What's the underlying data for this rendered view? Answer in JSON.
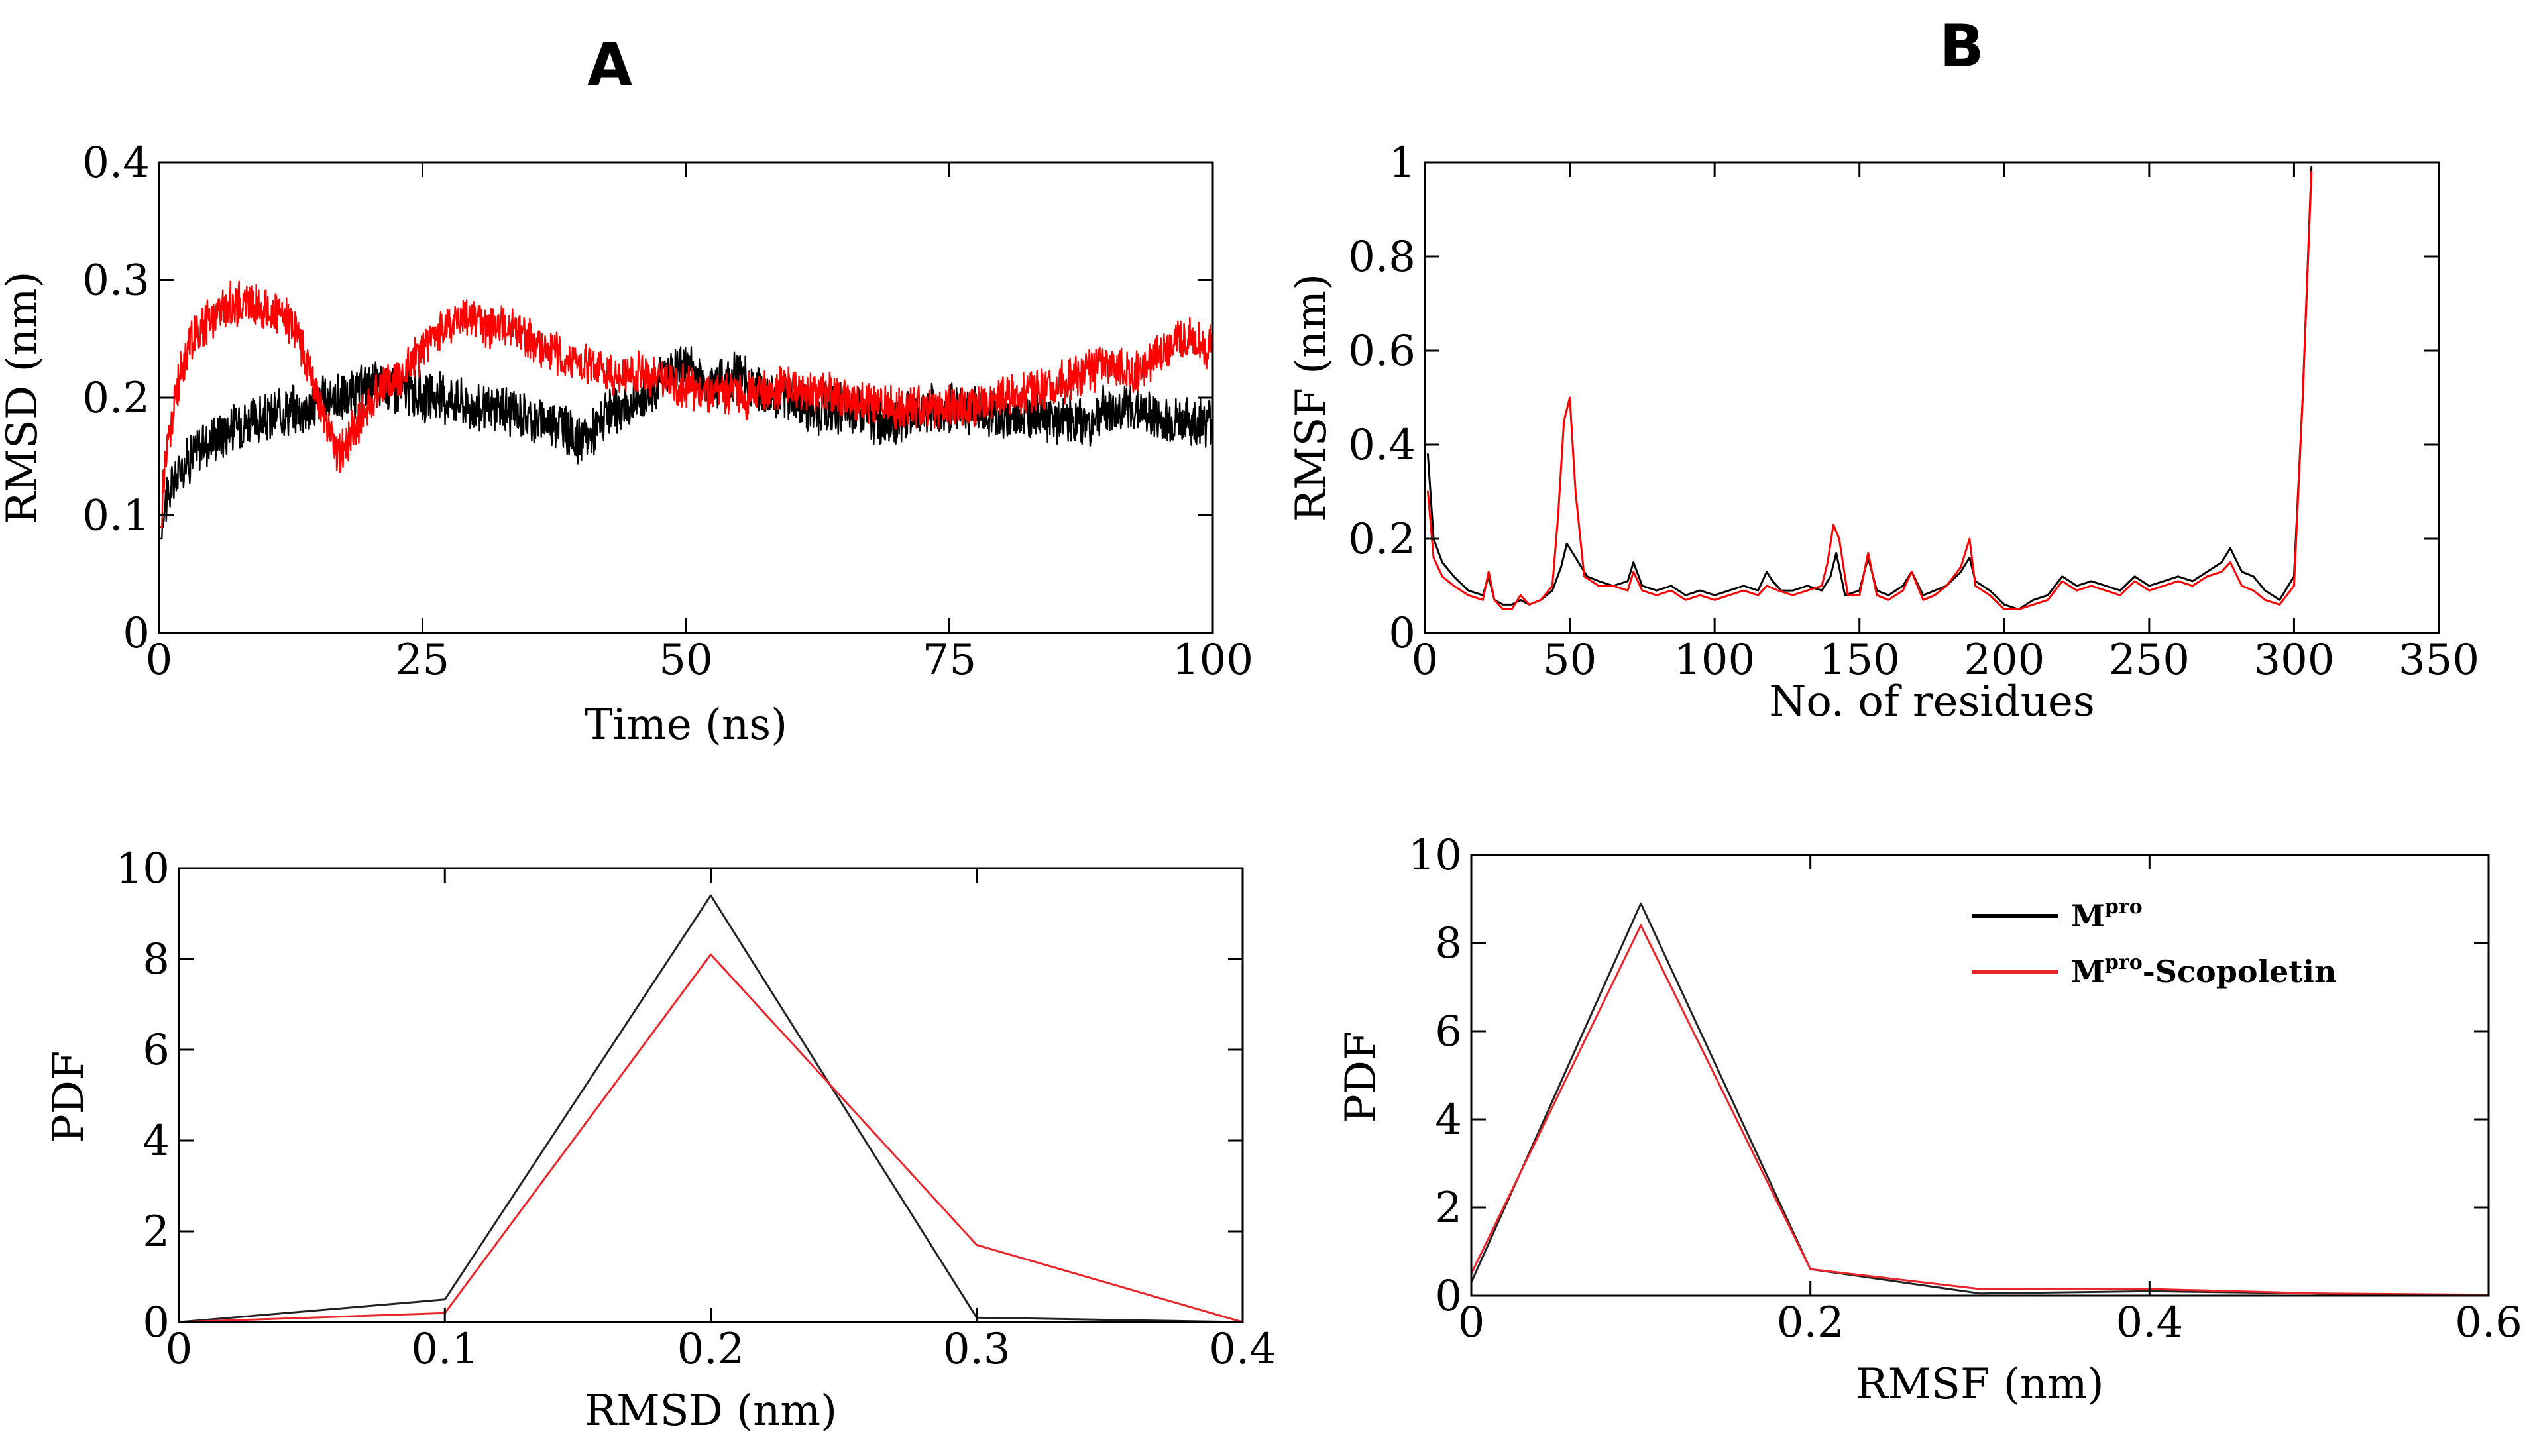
{
  "panel_labels": {
    "a": "A",
    "b": "B"
  },
  "colors": {
    "black": "#000000",
    "red": "#ff0000",
    "pdf_black": "#222222",
    "pdf_red": "#e8262b"
  },
  "legend": {
    "mpro_main": "M",
    "mpro_sup": "pro",
    "scop_main": "M",
    "scop_sup": "pro",
    "scop_suffix": "-Scopoletin"
  },
  "chart_data": [
    {
      "id": "rmsd",
      "type": "line",
      "title": "",
      "xlabel": "Time (ns)",
      "ylabel": "RMSD (nm)",
      "xlim": [
        0,
        100
      ],
      "ylim": [
        0,
        0.4
      ],
      "xticks": [
        0,
        25,
        50,
        75,
        100
      ],
      "yticks": [
        0,
        0.1,
        0.2,
        0.3,
        0.4
      ],
      "xtick_labels": [
        "0",
        "25",
        "50",
        "75",
        "100"
      ],
      "ytick_labels": [
        "0",
        "0.1",
        "0.2",
        "0.3",
        "0.4"
      ],
      "noise_key": [
        {
          "name": "Mpro",
          "series_noise": 0.018
        },
        {
          "name": "Mpro-Scopoletin",
          "series_noise": 0.016
        }
      ],
      "series": [
        {
          "name": "Mpro",
          "color": "#000000",
          "x": [
            0,
            0.5,
            1,
            2,
            3,
            4,
            6,
            8,
            10,
            12,
            14,
            16,
            18,
            20,
            22,
            25,
            28,
            30,
            33,
            36,
            38,
            40,
            42,
            44,
            46,
            48,
            50,
            52,
            55,
            58,
            60,
            62,
            65,
            68,
            70,
            73,
            75,
            78,
            80,
            83,
            85,
            88,
            90,
            93,
            95,
            98,
            100
          ],
          "values": [
            0.08,
            0.11,
            0.12,
            0.14,
            0.15,
            0.16,
            0.17,
            0.18,
            0.18,
            0.19,
            0.19,
            0.2,
            0.2,
            0.21,
            0.21,
            0.2,
            0.2,
            0.19,
            0.19,
            0.18,
            0.18,
            0.16,
            0.18,
            0.19,
            0.2,
            0.22,
            0.23,
            0.21,
            0.22,
            0.2,
            0.2,
            0.19,
            0.19,
            0.18,
            0.18,
            0.19,
            0.19,
            0.19,
            0.18,
            0.19,
            0.18,
            0.18,
            0.19,
            0.19,
            0.18,
            0.18,
            0.18
          ]
        },
        {
          "name": "Mpro-Scopoletin",
          "color": "#ff0000",
          "x": [
            0,
            0.5,
            1,
            2,
            3,
            5,
            7,
            9,
            11,
            13,
            15,
            17,
            19,
            21,
            23,
            25,
            27,
            29,
            31,
            33,
            35,
            37,
            40,
            43,
            46,
            50,
            55,
            60,
            65,
            70,
            75,
            80,
            85,
            88,
            90,
            93,
            95,
            98,
            100
          ],
          "values": [
            0.09,
            0.14,
            0.17,
            0.22,
            0.25,
            0.27,
            0.28,
            0.28,
            0.27,
            0.26,
            0.2,
            0.15,
            0.18,
            0.21,
            0.22,
            0.24,
            0.26,
            0.27,
            0.26,
            0.26,
            0.25,
            0.24,
            0.23,
            0.22,
            0.22,
            0.21,
            0.2,
            0.21,
            0.2,
            0.19,
            0.19,
            0.2,
            0.21,
            0.22,
            0.23,
            0.22,
            0.24,
            0.25,
            0.24
          ]
        }
      ]
    },
    {
      "id": "rmsf",
      "type": "line",
      "title": "",
      "xlabel": "No. of residues",
      "ylabel": "RMSF (nm)",
      "xlim": [
        0,
        350
      ],
      "ylim": [
        0,
        1
      ],
      "xticks": [
        0,
        50,
        100,
        150,
        200,
        250,
        300,
        350
      ],
      "yticks": [
        0,
        0.2,
        0.4,
        0.6,
        0.8,
        1
      ],
      "xtick_labels": [
        "0",
        "50",
        "100",
        "150",
        "200",
        "250",
        "300",
        "350"
      ],
      "ytick_labels": [
        "0",
        "0.2",
        "0.4",
        "0.6",
        "0.8",
        "1"
      ],
      "series": [
        {
          "name": "Mpro",
          "color": "#000000",
          "x": [
            1,
            3,
            6,
            10,
            15,
            20,
            22,
            24,
            27,
            30,
            33,
            36,
            40,
            44,
            47,
            49,
            52,
            56,
            60,
            65,
            70,
            72,
            75,
            80,
            85,
            90,
            95,
            100,
            105,
            110,
            115,
            118,
            120,
            123,
            127,
            132,
            137,
            140,
            142,
            145,
            150,
            153,
            156,
            160,
            165,
            168,
            172,
            176,
            180,
            185,
            188,
            190,
            195,
            200,
            205,
            210,
            215,
            220,
            225,
            230,
            235,
            240,
            245,
            250,
            255,
            260,
            265,
            270,
            275,
            278,
            282,
            286,
            290,
            295,
            300,
            303,
            306
          ],
          "values": [
            0.38,
            0.2,
            0.15,
            0.12,
            0.09,
            0.08,
            0.12,
            0.07,
            0.06,
            0.06,
            0.07,
            0.06,
            0.07,
            0.09,
            0.14,
            0.19,
            0.16,
            0.12,
            0.11,
            0.1,
            0.11,
            0.15,
            0.1,
            0.09,
            0.1,
            0.08,
            0.09,
            0.08,
            0.09,
            0.1,
            0.09,
            0.13,
            0.11,
            0.09,
            0.09,
            0.1,
            0.09,
            0.12,
            0.17,
            0.08,
            0.09,
            0.16,
            0.09,
            0.08,
            0.1,
            0.13,
            0.08,
            0.09,
            0.1,
            0.13,
            0.16,
            0.11,
            0.09,
            0.06,
            0.05,
            0.07,
            0.08,
            0.12,
            0.1,
            0.11,
            0.1,
            0.09,
            0.12,
            0.1,
            0.11,
            0.12,
            0.11,
            0.13,
            0.15,
            0.18,
            0.13,
            0.12,
            0.09,
            0.07,
            0.12,
            0.5,
            0.99
          ]
        },
        {
          "name": "Mpro-Scopoletin",
          "color": "#ff0000",
          "x": [
            1,
            3,
            6,
            10,
            15,
            20,
            22,
            24,
            27,
            30,
            33,
            36,
            40,
            44,
            46,
            48,
            50,
            52,
            55,
            60,
            65,
            70,
            72,
            75,
            80,
            85,
            90,
            95,
            100,
            105,
            110,
            115,
            118,
            122,
            127,
            132,
            137,
            139,
            141,
            143,
            146,
            150,
            153,
            156,
            160,
            165,
            168,
            172,
            176,
            180,
            185,
            188,
            190,
            195,
            200,
            205,
            210,
            215,
            220,
            225,
            230,
            235,
            240,
            245,
            250,
            255,
            260,
            265,
            270,
            275,
            278,
            282,
            286,
            290,
            295,
            300,
            303,
            306
          ],
          "values": [
            0.3,
            0.16,
            0.12,
            0.1,
            0.08,
            0.07,
            0.13,
            0.07,
            0.05,
            0.05,
            0.08,
            0.06,
            0.07,
            0.1,
            0.25,
            0.45,
            0.5,
            0.3,
            0.12,
            0.1,
            0.1,
            0.09,
            0.13,
            0.09,
            0.08,
            0.09,
            0.07,
            0.08,
            0.07,
            0.08,
            0.09,
            0.08,
            0.1,
            0.09,
            0.08,
            0.09,
            0.1,
            0.15,
            0.23,
            0.2,
            0.08,
            0.08,
            0.17,
            0.08,
            0.07,
            0.09,
            0.13,
            0.07,
            0.08,
            0.1,
            0.14,
            0.2,
            0.1,
            0.08,
            0.05,
            0.05,
            0.06,
            0.07,
            0.11,
            0.09,
            0.1,
            0.09,
            0.08,
            0.11,
            0.09,
            0.1,
            0.11,
            0.1,
            0.12,
            0.13,
            0.15,
            0.1,
            0.09,
            0.07,
            0.06,
            0.1,
            0.5,
            0.98
          ]
        }
      ]
    },
    {
      "id": "pdf_rmsd",
      "type": "line",
      "title": "",
      "xlabel": "RMSD (nm)",
      "ylabel": "PDF",
      "xlim": [
        0,
        0.4
      ],
      "ylim": [
        0,
        10
      ],
      "xticks": [
        0,
        0.1,
        0.2,
        0.3,
        0.4
      ],
      "yticks": [
        0,
        2,
        4,
        6,
        8,
        10
      ],
      "xtick_labels": [
        "0",
        "0.1",
        "0.2",
        "0.3",
        "0.4"
      ],
      "ytick_labels": [
        "0",
        "2",
        "4",
        "6",
        "8",
        "10"
      ],
      "series": [
        {
          "name": "Mpro",
          "color": "#222222",
          "x": [
            0,
            0.1,
            0.2,
            0.3,
            0.4
          ],
          "values": [
            0,
            0.5,
            9.4,
            0.1,
            0
          ]
        },
        {
          "name": "Mpro-Scopoletin",
          "color": "#e8262b",
          "x": [
            0,
            0.1,
            0.2,
            0.3,
            0.4
          ],
          "values": [
            0,
            0.2,
            8.1,
            1.7,
            0
          ]
        }
      ]
    },
    {
      "id": "pdf_rmsf",
      "type": "line",
      "title": "",
      "xlabel": "RMSF (nm)",
      "ylabel": "PDF",
      "xlim": [
        0,
        0.6
      ],
      "ylim": [
        0,
        10
      ],
      "xticks": [
        0,
        0.2,
        0.4,
        0.6
      ],
      "yticks": [
        0,
        2,
        4,
        6,
        8,
        10
      ],
      "xtick_labels": [
        "0",
        "0.2",
        "0.4",
        "0.6"
      ],
      "ytick_labels": [
        "0",
        "2",
        "4",
        "6",
        "8",
        "10"
      ],
      "legend_position": "top-right",
      "series": [
        {
          "name": "Mpro",
          "color": "#222222",
          "x": [
            0,
            0.1,
            0.2,
            0.3,
            0.4,
            0.5,
            0.6
          ],
          "values": [
            0.3,
            8.9,
            0.6,
            0.05,
            0.1,
            0.05,
            0
          ]
        },
        {
          "name": "Mpro-Scopoletin",
          "color": "#e8262b",
          "x": [
            0,
            0.1,
            0.2,
            0.3,
            0.4,
            0.5,
            0.6
          ],
          "values": [
            0.5,
            8.4,
            0.6,
            0.15,
            0.15,
            0.05,
            0.02
          ]
        }
      ]
    }
  ]
}
